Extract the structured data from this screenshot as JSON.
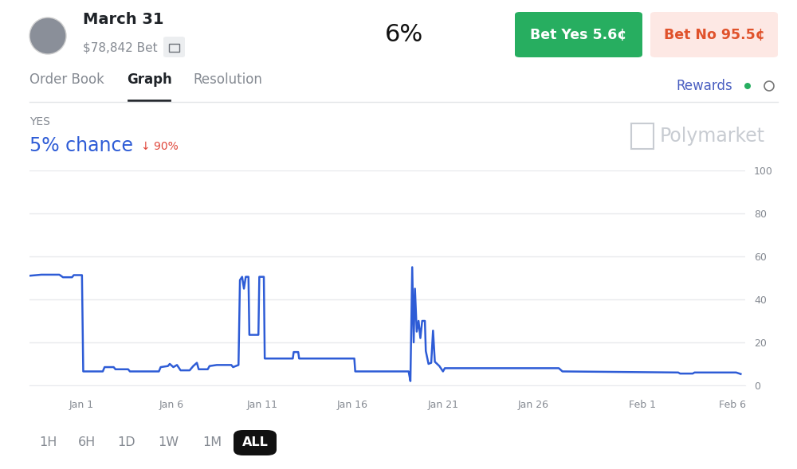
{
  "header": {
    "title": "March 31",
    "volume": "$78,842 Bet",
    "price": "6%",
    "buttons": [
      {
        "label": "Bet Yes 5.6¢",
        "color": "#27ae60",
        "text_color": "#ffffff"
      },
      {
        "label": "Bet No 95.5¢",
        "color": "#fde8e4",
        "text_color": "#e0522b"
      }
    ]
  },
  "tabs": {
    "items": [
      "Order Book",
      "Graph",
      "Resolution"
    ],
    "active": "Graph",
    "rewards": "Rewards"
  },
  "watermark": "Polymarket",
  "chart_data": {
    "type": "line",
    "subtitle": "YES",
    "title": "5% chance",
    "annotations": [
      "↓ 90%"
    ],
    "x": [
      -1.85,
      -1.2,
      -0.2,
      0.0,
      0.5,
      0.6,
      1.05,
      1.12,
      2.2,
      2.3,
      2.8,
      2.9,
      3.6,
      3.7,
      5.3,
      5.4,
      5.8,
      5.9,
      6.1,
      6.3,
      6.5,
      7.0,
      7.2,
      7.4,
      7.5,
      8.0,
      8.1,
      8.5,
      9.3,
      9.4,
      9.7,
      9.78,
      9.9,
      10.0,
      10.1,
      10.25,
      10.3,
      10.8,
      10.85,
      11.1,
      11.15,
      12.7,
      12.75,
      13.0,
      13.05,
      16.1,
      16.15,
      19.1,
      19.2,
      19.3,
      19.38,
      19.45,
      19.55,
      19.65,
      19.75,
      19.85,
      20.0,
      20.05,
      20.2,
      20.35,
      20.45,
      20.55,
      20.8,
      21.0,
      21.1,
      27.4,
      27.6,
      34.0,
      34.1,
      34.8,
      34.9,
      37.2,
      37.45
    ],
    "values": [
      51.0,
      51.5,
      51.5,
      50.3,
      50.3,
      51.3,
      51.3,
      6.5,
      6.5,
      8.5,
      8.5,
      7.5,
      7.5,
      6.5,
      6.5,
      8.5,
      9.0,
      10.0,
      8.5,
      9.5,
      7.0,
      7.0,
      9.0,
      10.5,
      7.5,
      7.5,
      9.0,
      9.5,
      9.5,
      8.5,
      9.5,
      49.0,
      50.5,
      45.0,
      50.5,
      50.5,
      23.5,
      23.5,
      50.5,
      50.5,
      12.5,
      12.5,
      15.5,
      15.5,
      12.5,
      12.5,
      6.5,
      6.5,
      2.0,
      55.0,
      20.0,
      45.0,
      25.0,
      30.0,
      22.0,
      30.0,
      30.0,
      16.0,
      10.0,
      10.5,
      25.5,
      11.0,
      9.0,
      6.5,
      8.0,
      8.0,
      6.5,
      6.0,
      5.5,
      5.5,
      6.0,
      6.0,
      5.3
    ],
    "color": "#2e5cd6",
    "xlim": [
      -1.85,
      37.7
    ],
    "ylim": [
      0,
      100
    ],
    "xticks": [
      {
        "value": 1,
        "label": "Jan 1"
      },
      {
        "value": 6,
        "label": "Jan 6"
      },
      {
        "value": 11,
        "label": "Jan 11"
      },
      {
        "value": 16,
        "label": "Jan 16"
      },
      {
        "value": 21,
        "label": "Jan 21"
      },
      {
        "value": 26,
        "label": "Jan 26"
      },
      {
        "value": 32,
        "label": "Feb 1"
      },
      {
        "value": 37,
        "label": "Feb 6"
      }
    ],
    "yticks": [
      0,
      20,
      40,
      60,
      80,
      100
    ],
    "grid": true
  },
  "range_buttons": {
    "items": [
      "1H",
      "6H",
      "1D",
      "1W",
      "1M",
      "ALL"
    ],
    "active": "ALL"
  }
}
